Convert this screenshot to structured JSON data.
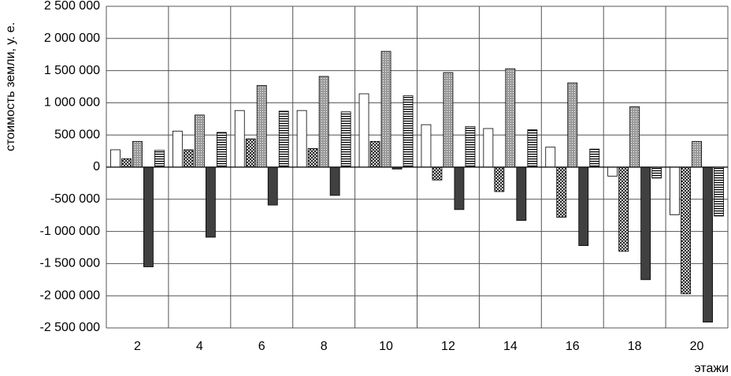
{
  "chart_data": {
    "type": "bar",
    "y_label": "стоимость земли, у. е.",
    "x_label": "этажи",
    "categories": [
      "2",
      "4",
      "6",
      "8",
      "10",
      "12",
      "14",
      "16",
      "18",
      "20"
    ],
    "series": [
      {
        "color": "#ffffff",
        "pattern": "none",
        "values": [
          270000,
          560000,
          880000,
          880000,
          1140000,
          660000,
          600000,
          310000,
          -140000,
          -740000
        ]
      },
      {
        "color": "#ffffff",
        "pattern": "crosshatch",
        "values": [
          130000,
          270000,
          440000,
          290000,
          400000,
          -200000,
          -380000,
          -780000,
          -1310000,
          -1970000
        ]
      },
      {
        "color": "#9a9a9a",
        "pattern": "dots",
        "values": [
          400000,
          810000,
          1270000,
          1410000,
          1800000,
          1470000,
          1530000,
          1310000,
          940000,
          400000
        ]
      },
      {
        "color": "#404040",
        "pattern": "solid",
        "values": [
          -1550000,
          -1090000,
          -590000,
          -440000,
          -30000,
          -660000,
          -830000,
          -1220000,
          -1750000,
          -2410000
        ]
      },
      {
        "color": "#ffffff",
        "pattern": "hstripes",
        "values": [
          260000,
          540000,
          870000,
          860000,
          1110000,
          630000,
          580000,
          280000,
          -170000,
          -760000
        ]
      }
    ],
    "ylim": [
      -2500000,
      2500000
    ],
    "yticks": [
      {
        "value": -2500000,
        "label": "-2 500 000"
      },
      {
        "value": -2000000,
        "label": "-2 000 000"
      },
      {
        "value": -1500000,
        "label": "-1 500 000"
      },
      {
        "value": -1000000,
        "label": "-1 000 000"
      },
      {
        "value": -500000,
        "label": "-500 000"
      },
      0,
      {
        "value": 500000,
        "label": "500 000"
      },
      {
        "value": 1000000,
        "label": "1 000 000"
      },
      {
        "value": 1500000,
        "label": "1 500 000"
      },
      {
        "value": 2000000,
        "label": "2 000 000"
      },
      {
        "value": 2500000,
        "label": "2 500 000"
      }
    ],
    "grid": true
  }
}
